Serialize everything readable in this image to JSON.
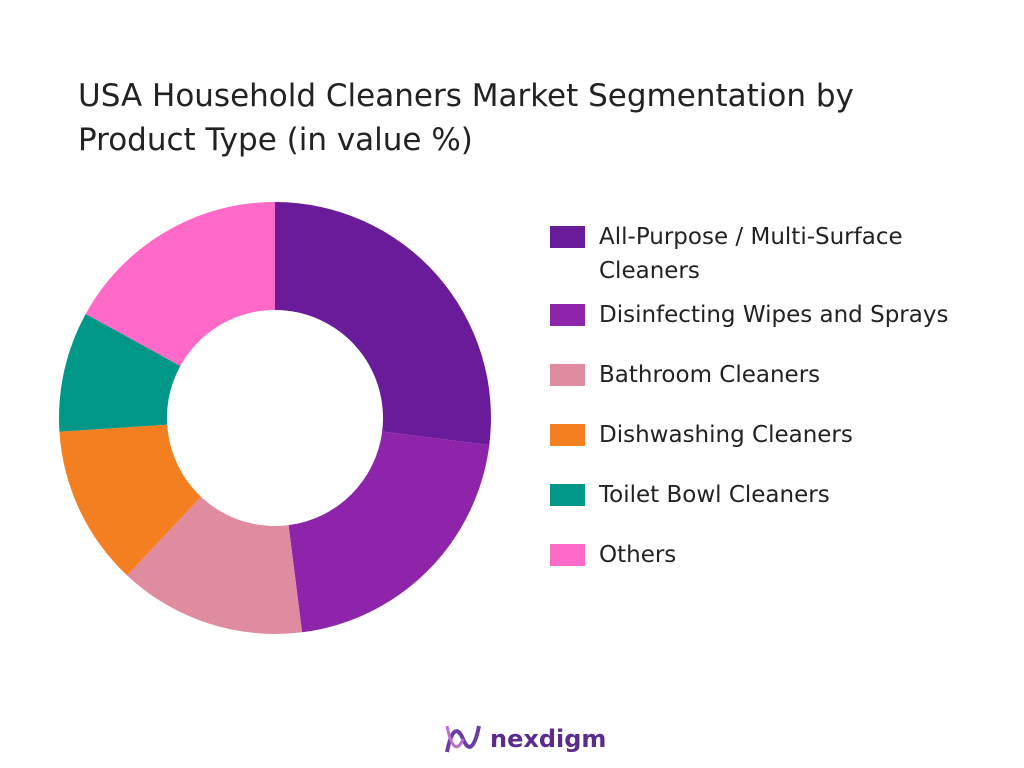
{
  "chart_data": {
    "type": "donut",
    "title": "USA Household Cleaners Market Segmentation by Product Type (in value %)",
    "categories": [
      "All-Purpose / Multi-Surface Cleaners",
      "Disinfecting Wipes and Sprays",
      "Bathroom Cleaners",
      "Dishwashing Cleaners",
      "Toilet Bowl Cleaners",
      "Others"
    ],
    "values": [
      27,
      21,
      14,
      12,
      9,
      17
    ],
    "colors": [
      "#6a1b9a",
      "#8e24aa",
      "#e08ca0",
      "#f47f20",
      "#009688",
      "#ff69c8"
    ],
    "legend": "right"
  },
  "footer": {
    "logo": "nexdigm"
  }
}
